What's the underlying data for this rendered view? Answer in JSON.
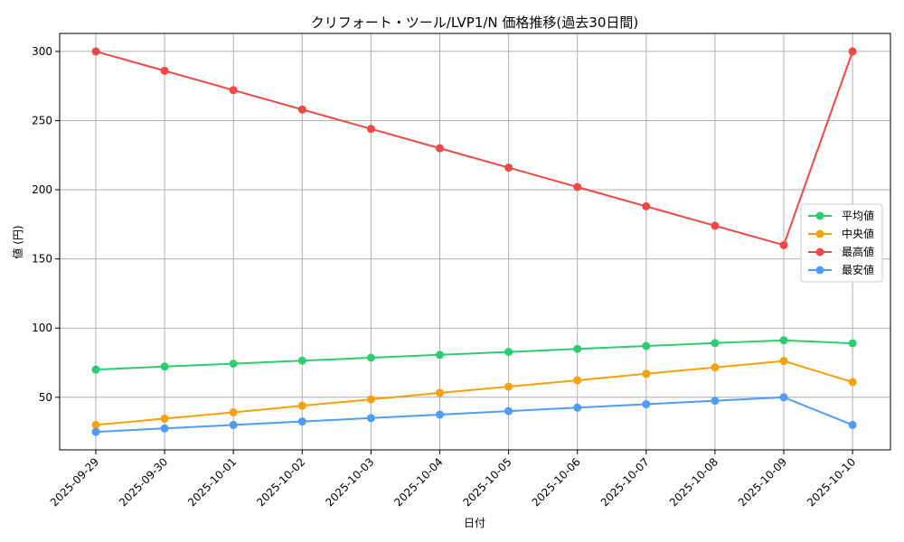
{
  "chart_data": {
    "type": "line",
    "title": "クリフォート・ツール/LVP1/N 価格推移(過去30日間)",
    "xlabel": "日付",
    "ylabel": "値 (円)",
    "categories": [
      "2025-09-29",
      "2025-09-30",
      "2025-10-01",
      "2025-10-02",
      "2025-10-03",
      "2025-10-04",
      "2025-10-05",
      "2025-10-06",
      "2025-10-07",
      "2025-10-08",
      "2025-10-09",
      "2025-10-10"
    ],
    "ylim": [
      12,
      313
    ],
    "yticks": [
      50,
      100,
      150,
      200,
      250,
      300
    ],
    "grid": true,
    "legend_position": "center-right",
    "series": [
      {
        "name": "平均値",
        "color": "#2ecc71",
        "values": [
          70,
          72.2,
          74.3,
          76.5,
          78.6,
          80.7,
          82.8,
          85,
          87.1,
          89.2,
          91.2,
          89
        ]
      },
      {
        "name": "中央値",
        "color": "#f4a10b",
        "values": [
          30,
          34.6,
          39.1,
          43.9,
          48.5,
          53.2,
          57.7,
          62.3,
          67,
          71.6,
          76.2,
          61
        ]
      },
      {
        "name": "最高値",
        "color": "#f04747",
        "values": [
          300,
          286,
          272,
          258,
          244,
          230,
          216,
          202,
          188,
          174,
          160,
          300
        ]
      },
      {
        "name": "最安値",
        "color": "#4f9cf7",
        "values": [
          25,
          27.5,
          30,
          32.5,
          35,
          37.5,
          40,
          42.5,
          45,
          47.5,
          50,
          30
        ]
      }
    ]
  }
}
